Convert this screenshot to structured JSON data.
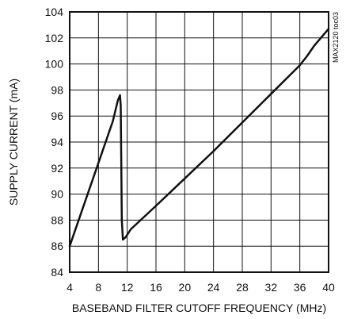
{
  "chart_data": {
    "type": "line",
    "xlabel": "BASEBAND FILTER CUTOFF FREQUENCY (MHz)",
    "ylabel": "SUPPLY CURRENT (mA)",
    "xlim": [
      4,
      40
    ],
    "ylim": [
      84,
      104
    ],
    "x_ticks": [
      "4",
      "8",
      "12",
      "16",
      "20",
      "24",
      "28",
      "32",
      "36",
      "40"
    ],
    "y_ticks": [
      "84",
      "86",
      "88",
      "90",
      "92",
      "94",
      "96",
      "98",
      "100",
      "102",
      "104"
    ],
    "grid": true,
    "side_note": "MAX2120 toc03",
    "series": [
      {
        "points": [
          [
            4.0,
            86.0
          ],
          [
            6.0,
            89.2
          ],
          [
            8.0,
            92.4
          ],
          [
            10.0,
            95.6
          ],
          [
            10.7,
            97.2
          ],
          [
            11.0,
            97.6
          ],
          [
            11.1,
            96.8
          ],
          [
            11.25,
            88.0
          ],
          [
            11.4,
            86.5
          ],
          [
            11.8,
            86.7
          ],
          [
            12.5,
            87.3
          ],
          [
            16.0,
            89.1
          ],
          [
            20.0,
            91.2
          ],
          [
            24.0,
            93.3
          ],
          [
            28.0,
            95.5
          ],
          [
            32.0,
            97.7
          ],
          [
            36.0,
            99.9
          ],
          [
            37.0,
            100.6
          ],
          [
            38.0,
            101.4
          ],
          [
            40.0,
            102.7
          ]
        ]
      }
    ]
  }
}
